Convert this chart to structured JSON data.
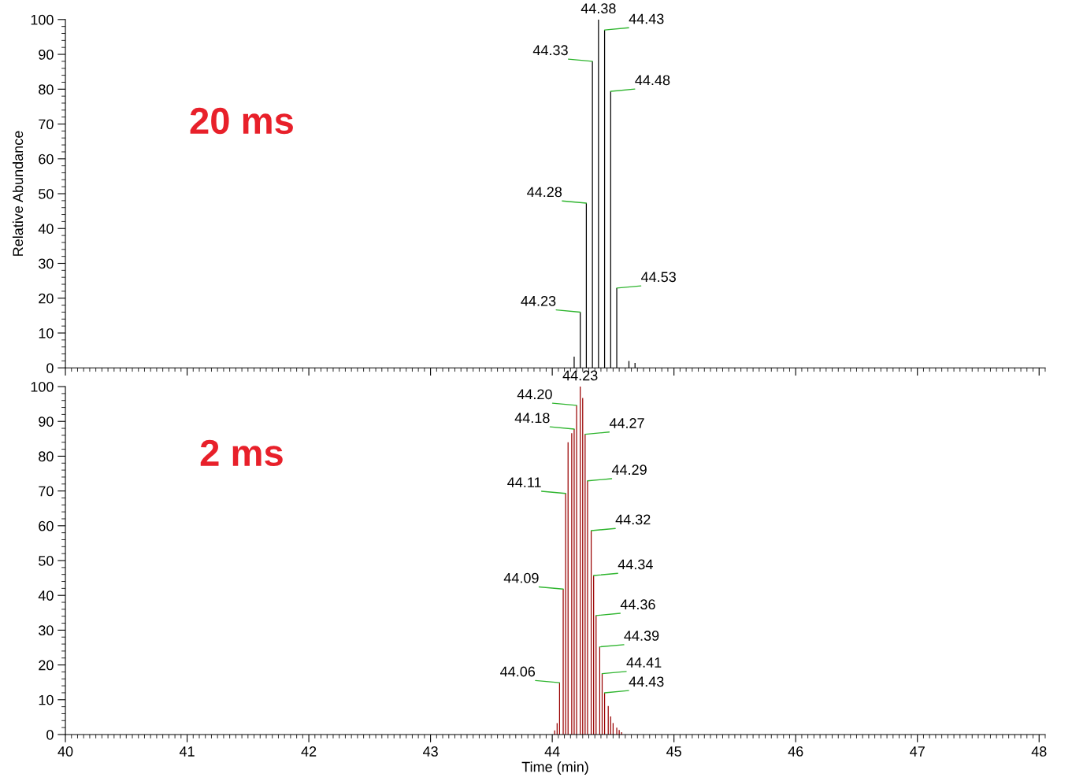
{
  "chart_data": [
    {
      "type": "bar",
      "ylabel": "Relative Abundance",
      "tick_labels": "y",
      "xlim": [
        40,
        48.05
      ],
      "xticks": [
        40,
        41,
        42,
        43,
        44,
        45,
        46,
        47,
        48
      ],
      "ylim": [
        0,
        100
      ],
      "yticks": [
        0,
        10,
        20,
        30,
        40,
        50,
        60,
        70,
        80,
        90,
        100
      ],
      "grid": false,
      "legend": false,
      "series": [
        {
          "color": "#000000",
          "x": [
            44.18,
            44.23,
            44.28,
            44.33,
            44.38,
            44.43,
            44.48,
            44.53,
            44.63,
            44.68
          ],
          "values": [
            3.2,
            16,
            47.3,
            88,
            100,
            97,
            79.4,
            22.9,
            2,
            1.4
          ]
        }
      ],
      "annotations": [
        "20 ms",
        {
          "text": "44.23",
          "x": 44.23,
          "y": 16
        },
        {
          "text": "44.28",
          "x": 44.28,
          "y": 47.3
        },
        {
          "text": "44.33",
          "x": 44.33,
          "y": 88
        },
        {
          "text": "44.38",
          "x": 44.38,
          "y": 100
        },
        {
          "text": "44.43",
          "x": 44.43,
          "y": 97
        },
        {
          "text": "44.48",
          "x": 44.48,
          "y": 79.4
        },
        {
          "text": "44.53",
          "x": 44.53,
          "y": 22.9
        }
      ]
    },
    {
      "type": "bar",
      "xlabel": "Time (min)",
      "xlim": [
        40,
        48.05
      ],
      "xticks": [
        40,
        41,
        42,
        43,
        44,
        45,
        46,
        47,
        48
      ],
      "ylim": [
        0,
        100
      ],
      "yticks": [
        0,
        10,
        20,
        30,
        40,
        50,
        60,
        70,
        80,
        90,
        100
      ],
      "grid": false,
      "legend": false,
      "series": [
        {
          "color": "#990000",
          "x": [
            44.02,
            44.04,
            44.06,
            44.09,
            44.11,
            44.13,
            44.16,
            44.18,
            44.2,
            44.23,
            44.25,
            44.27,
            44.29,
            44.32,
            44.34,
            44.36,
            44.39,
            44.41,
            44.43,
            44.46,
            44.48,
            44.5,
            44.53,
            44.55,
            44.57
          ],
          "values": [
            1.2,
            3.3,
            14.9,
            41.8,
            69.3,
            84.0,
            86.6,
            87.8,
            94.6,
            100,
            96.7,
            86.3,
            72.9,
            58.6,
            45.7,
            34.2,
            25.2,
            17.5,
            12.0,
            8.2,
            5.2,
            3.3,
            2.0,
            1.3,
            0.7
          ]
        }
      ],
      "annotations": [
        "2 ms",
        {
          "text": "44.06",
          "x": 44.06,
          "y": 14.9
        },
        {
          "text": "44.09",
          "x": 44.09,
          "y": 41.8
        },
        {
          "text": "44.11",
          "x": 44.11,
          "y": 69.3
        },
        {
          "text": "44.18",
          "x": 44.18,
          "y": 87.8
        },
        {
          "text": "44.20",
          "x": 44.2,
          "y": 94.6
        },
        {
          "text": "44.23",
          "x": 44.23,
          "y": 100
        },
        {
          "text": "44.27",
          "x": 44.27,
          "y": 86.3
        },
        {
          "text": "44.29",
          "x": 44.29,
          "y": 72.9
        },
        {
          "text": "44.32",
          "x": 44.32,
          "y": 58.6
        },
        {
          "text": "44.34",
          "x": 44.34,
          "y": 45.7
        },
        {
          "text": "44.36",
          "x": 44.36,
          "y": 34.2
        },
        {
          "text": "44.39",
          "x": 44.39,
          "y": 25.2
        },
        {
          "text": "44.41",
          "x": 44.41,
          "y": 17.5
        },
        {
          "text": "44.43",
          "x": 44.43,
          "y": 12.0
        }
      ]
    }
  ]
}
